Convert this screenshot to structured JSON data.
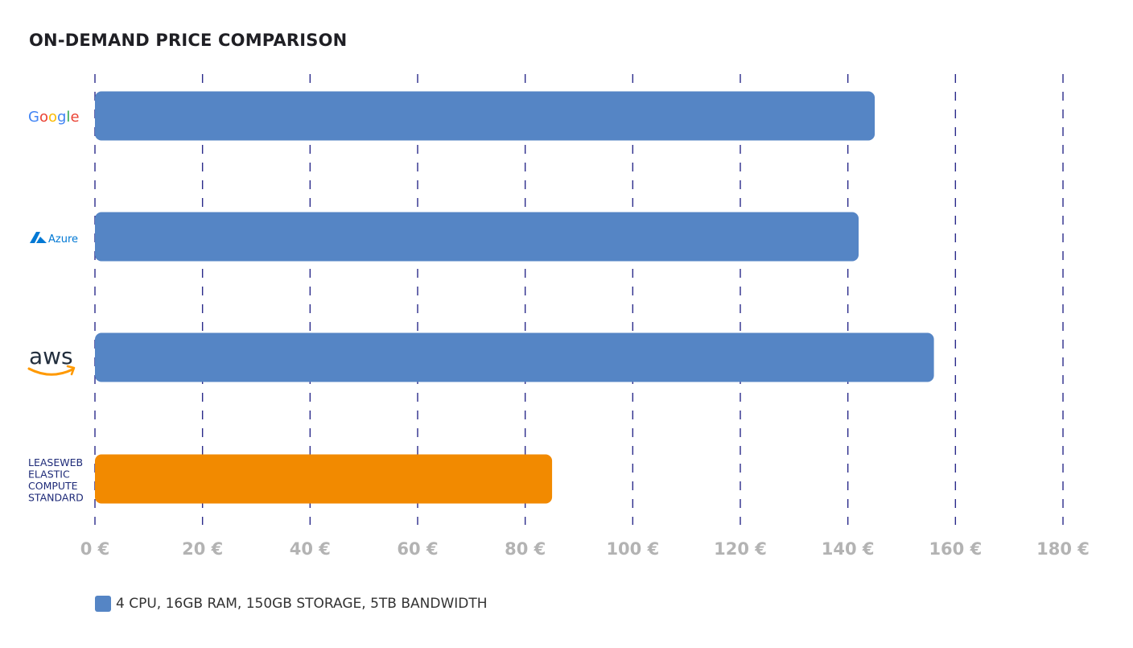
{
  "chart_data": {
    "type": "bar",
    "orientation": "horizontal",
    "title": "ON-DEMAND PRICE COMPARISON",
    "categories": [
      "Google",
      "Azure",
      "aws",
      "LEASEWEB ELASTIC COMPUTE STANDARD"
    ],
    "category_logos": [
      "google-logo",
      "azure-logo",
      "aws-logo",
      null
    ],
    "values": [
      145,
      142,
      156,
      85
    ],
    "bar_colors": [
      "#5585c5",
      "#5585c5",
      "#5585c5",
      "#f28a00"
    ],
    "xlim": [
      0,
      180
    ],
    "x_ticks": [
      0,
      20,
      40,
      60,
      80,
      100,
      120,
      140,
      160,
      180
    ],
    "x_tick_labels": [
      "0 €",
      "20 €",
      "40 €",
      "60 €",
      "80 €",
      "100 €",
      "120 €",
      "140 €",
      "160 €",
      "180 €"
    ],
    "grid": true,
    "grid_style": "dashed",
    "grid_color": "#2a2a8a",
    "tick_label_color": "#b3b3b3",
    "series": [
      {
        "name": "4 CPU, 16GB RAM, 150GB STORAGE, 5TB BANDWIDTH",
        "color": "#5585c5"
      }
    ],
    "legend_position": "bottom-left"
  },
  "logo_text": {
    "azure": "Azure",
    "aws": "aws",
    "leaseweb": [
      "LEASEWEB",
      "ELASTIC",
      "COMPUTE",
      "STANDARD"
    ]
  },
  "colors": {
    "google_blue": "#4285f4",
    "google_red": "#ea4335",
    "google_yellow": "#fbbc05",
    "google_green": "#34a853",
    "azure_blue": "#0078d4",
    "aws_dark": "#232f3e",
    "aws_orange": "#ff9900",
    "leaseweb_navy": "#1e2a78"
  }
}
